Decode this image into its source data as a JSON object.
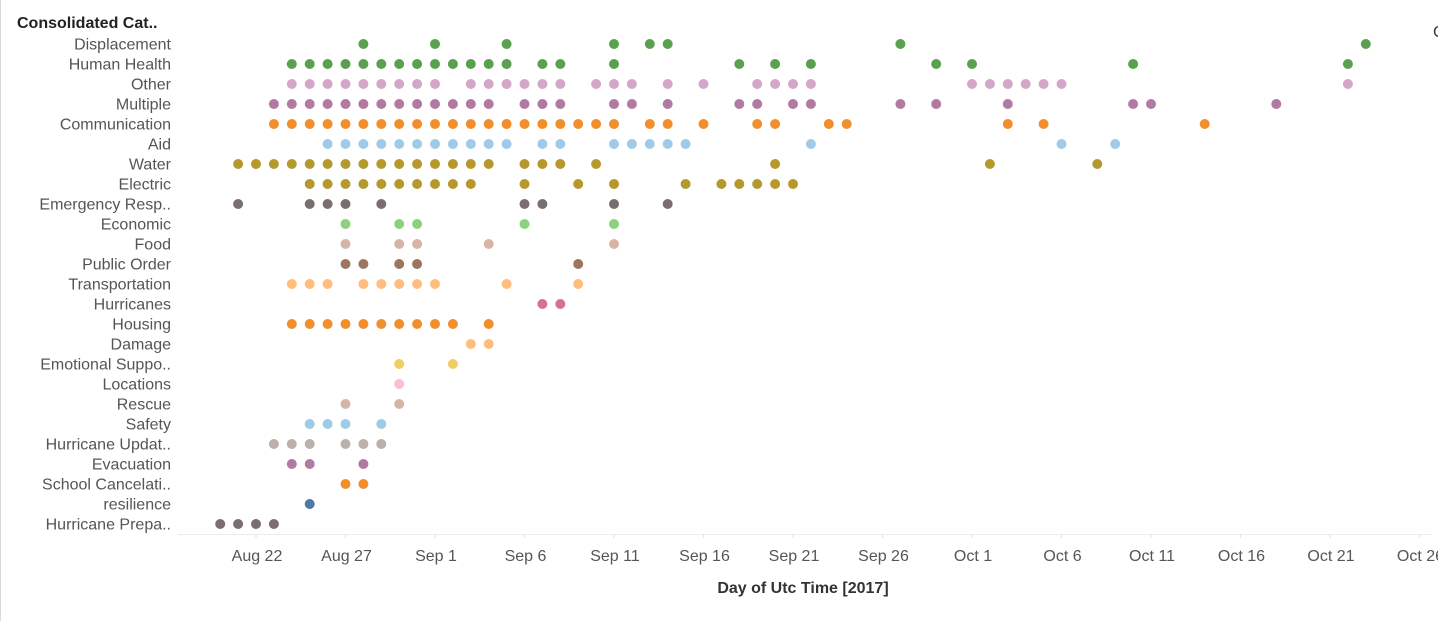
{
  "chart_data": {
    "type": "scatter",
    "title": "",
    "row_header": "Consolidated Cat..",
    "xlabel": "Day of Utc Time [2017]",
    "x_ticks": [
      "Aug 22",
      "Aug 27",
      "Sep 1",
      "Sep 6",
      "Sep 11",
      "Sep 16",
      "Sep 21",
      "Sep 26",
      "Oct 1",
      "Oct 6",
      "Oct 11",
      "Oct 16",
      "Oct 21",
      "Oct 26"
    ],
    "xlim": [
      "2017-08-17",
      "2017-10-27"
    ],
    "edge_text": "C",
    "grid": false,
    "categories": [
      {
        "name": "Displacement",
        "color": "#59a14f",
        "dates": [
          "2017-08-28",
          "2017-09-01",
          "2017-09-05",
          "2017-09-11",
          "2017-09-13",
          "2017-09-14",
          "2017-09-27",
          "2017-10-23"
        ]
      },
      {
        "name": "Human Health",
        "color": "#59a14f",
        "dates": [
          "2017-08-24",
          "2017-08-25",
          "2017-08-26",
          "2017-08-27",
          "2017-08-28",
          "2017-08-29",
          "2017-08-30",
          "2017-08-31",
          "2017-09-01",
          "2017-09-02",
          "2017-09-03",
          "2017-09-04",
          "2017-09-05",
          "2017-09-07",
          "2017-09-08",
          "2017-09-11",
          "2017-09-18",
          "2017-09-20",
          "2017-09-22",
          "2017-09-29",
          "2017-10-01",
          "2017-10-10",
          "2017-10-22"
        ]
      },
      {
        "name": "Other",
        "color": "#d4a6c8",
        "dates": [
          "2017-08-24",
          "2017-08-25",
          "2017-08-26",
          "2017-08-27",
          "2017-08-28",
          "2017-08-29",
          "2017-08-30",
          "2017-08-31",
          "2017-09-01",
          "2017-09-03",
          "2017-09-04",
          "2017-09-05",
          "2017-09-06",
          "2017-09-07",
          "2017-09-08",
          "2017-09-10",
          "2017-09-11",
          "2017-09-12",
          "2017-09-14",
          "2017-09-16",
          "2017-09-19",
          "2017-09-20",
          "2017-09-21",
          "2017-09-22",
          "2017-10-01",
          "2017-10-02",
          "2017-10-03",
          "2017-10-04",
          "2017-10-05",
          "2017-10-06",
          "2017-10-22"
        ]
      },
      {
        "name": "Multiple",
        "color": "#b07aa1",
        "dates": [
          "2017-08-23",
          "2017-08-24",
          "2017-08-25",
          "2017-08-26",
          "2017-08-27",
          "2017-08-28",
          "2017-08-29",
          "2017-08-30",
          "2017-08-31",
          "2017-09-01",
          "2017-09-02",
          "2017-09-03",
          "2017-09-04",
          "2017-09-06",
          "2017-09-07",
          "2017-09-08",
          "2017-09-11",
          "2017-09-12",
          "2017-09-14",
          "2017-09-18",
          "2017-09-19",
          "2017-09-21",
          "2017-09-22",
          "2017-09-27",
          "2017-09-29",
          "2017-10-03",
          "2017-10-10",
          "2017-10-11",
          "2017-10-18"
        ]
      },
      {
        "name": "Communication",
        "color": "#f28e2b",
        "dates": [
          "2017-08-23",
          "2017-08-24",
          "2017-08-25",
          "2017-08-26",
          "2017-08-27",
          "2017-08-28",
          "2017-08-29",
          "2017-08-30",
          "2017-08-31",
          "2017-09-01",
          "2017-09-02",
          "2017-09-03",
          "2017-09-04",
          "2017-09-05",
          "2017-09-06",
          "2017-09-07",
          "2017-09-08",
          "2017-09-09",
          "2017-09-10",
          "2017-09-11",
          "2017-09-13",
          "2017-09-14",
          "2017-09-16",
          "2017-09-19",
          "2017-09-20",
          "2017-09-23",
          "2017-09-24",
          "2017-10-03",
          "2017-10-05",
          "2017-10-14"
        ]
      },
      {
        "name": "Aid",
        "color": "#a0cbe8",
        "dates": [
          "2017-08-26",
          "2017-08-27",
          "2017-08-28",
          "2017-08-29",
          "2017-08-30",
          "2017-08-31",
          "2017-09-01",
          "2017-09-02",
          "2017-09-03",
          "2017-09-04",
          "2017-09-05",
          "2017-09-07",
          "2017-09-08",
          "2017-09-11",
          "2017-09-12",
          "2017-09-13",
          "2017-09-14",
          "2017-09-15",
          "2017-09-22",
          "2017-10-06",
          "2017-10-09"
        ]
      },
      {
        "name": "Water",
        "color": "#b6992d",
        "dates": [
          "2017-08-21",
          "2017-08-22",
          "2017-08-23",
          "2017-08-24",
          "2017-08-25",
          "2017-08-26",
          "2017-08-27",
          "2017-08-28",
          "2017-08-29",
          "2017-08-30",
          "2017-08-31",
          "2017-09-01",
          "2017-09-02",
          "2017-09-03",
          "2017-09-04",
          "2017-09-06",
          "2017-09-07",
          "2017-09-08",
          "2017-09-10",
          "2017-09-20",
          "2017-10-02",
          "2017-10-08"
        ]
      },
      {
        "name": "Electric",
        "color": "#b6992d",
        "dates": [
          "2017-08-25",
          "2017-08-26",
          "2017-08-27",
          "2017-08-28",
          "2017-08-29",
          "2017-08-30",
          "2017-08-31",
          "2017-09-01",
          "2017-09-02",
          "2017-09-03",
          "2017-09-06",
          "2017-09-09",
          "2017-09-11",
          "2017-09-15",
          "2017-09-17",
          "2017-09-18",
          "2017-09-19",
          "2017-09-20",
          "2017-09-21"
        ]
      },
      {
        "name": "Emergency Resp..",
        "color": "#79706e",
        "dates": [
          "2017-08-21",
          "2017-08-25",
          "2017-08-26",
          "2017-08-27",
          "2017-08-29",
          "2017-09-06",
          "2017-09-07",
          "2017-09-11",
          "2017-09-14"
        ]
      },
      {
        "name": "Economic",
        "color": "#8cd17d",
        "dates": [
          "2017-08-27",
          "2017-08-30",
          "2017-08-31",
          "2017-09-06",
          "2017-09-11"
        ]
      },
      {
        "name": "Food",
        "color": "#d7b5a6",
        "dates": [
          "2017-08-27",
          "2017-08-30",
          "2017-08-31",
          "2017-09-04",
          "2017-09-11"
        ]
      },
      {
        "name": "Public Order",
        "color": "#9d7660",
        "dates": [
          "2017-08-27",
          "2017-08-28",
          "2017-08-30",
          "2017-08-31",
          "2017-09-09"
        ]
      },
      {
        "name": "Transportation",
        "color": "#ffbe7d",
        "dates": [
          "2017-08-24",
          "2017-08-25",
          "2017-08-26",
          "2017-08-28",
          "2017-08-29",
          "2017-08-30",
          "2017-08-31",
          "2017-09-01",
          "2017-09-05",
          "2017-09-09"
        ]
      },
      {
        "name": "Hurricanes",
        "color": "#d37295",
        "dates": [
          "2017-09-07",
          "2017-09-08"
        ]
      },
      {
        "name": "Housing",
        "color": "#f28e2b",
        "dates": [
          "2017-08-24",
          "2017-08-25",
          "2017-08-26",
          "2017-08-27",
          "2017-08-28",
          "2017-08-29",
          "2017-08-30",
          "2017-08-31",
          "2017-09-01",
          "2017-09-02",
          "2017-09-04"
        ]
      },
      {
        "name": "Damage",
        "color": "#ffbe7d",
        "dates": [
          "2017-09-03",
          "2017-09-04"
        ]
      },
      {
        "name": "Emotional Suppo..",
        "color": "#f1ce63",
        "dates": [
          "2017-08-30",
          "2017-09-02"
        ]
      },
      {
        "name": "Locations",
        "color": "#fabfd2",
        "dates": [
          "2017-08-30"
        ]
      },
      {
        "name": "Rescue",
        "color": "#d7b5a6",
        "dates": [
          "2017-08-27",
          "2017-08-30"
        ]
      },
      {
        "name": "Safety",
        "color": "#a0cbe8",
        "dates": [
          "2017-08-25",
          "2017-08-26",
          "2017-08-27",
          "2017-08-29"
        ]
      },
      {
        "name": "Hurricane Updat..",
        "color": "#bab0ac",
        "dates": [
          "2017-08-23",
          "2017-08-24",
          "2017-08-25",
          "2017-08-27",
          "2017-08-28",
          "2017-08-29"
        ]
      },
      {
        "name": "Evacuation",
        "color": "#b07aa1",
        "dates": [
          "2017-08-24",
          "2017-08-25",
          "2017-08-28"
        ]
      },
      {
        "name": "School Cancelati..",
        "color": "#f28e2b",
        "dates": [
          "2017-08-27",
          "2017-08-28"
        ]
      },
      {
        "name": "resilience",
        "color": "#4e79a7",
        "dates": [
          "2017-08-25"
        ]
      },
      {
        "name": "Hurricane Prepa..",
        "color": "#79706e",
        "dates": [
          "2017-08-20",
          "2017-08-21",
          "2017-08-22",
          "2017-08-23"
        ]
      }
    ]
  }
}
